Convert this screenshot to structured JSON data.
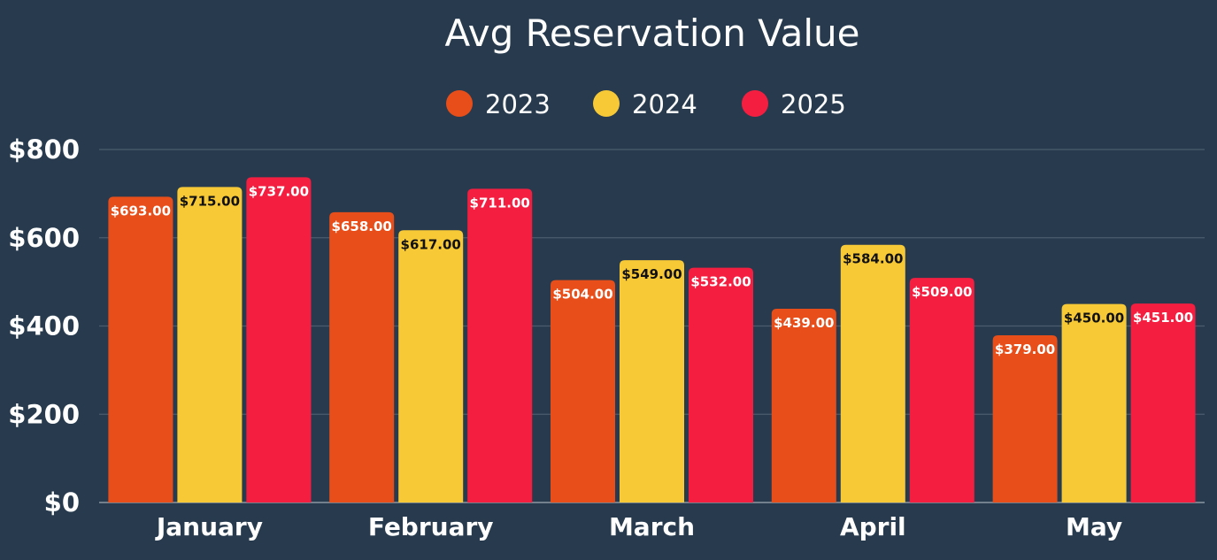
{
  "chart_data": {
    "type": "bar",
    "title": "Avg Reservation Value",
    "xlabel": "",
    "ylabel": "",
    "categories": [
      "January",
      "February",
      "March",
      "April",
      "May"
    ],
    "series": [
      {
        "name": "2023",
        "color": "#e84e19",
        "label_color": "#ffffff",
        "values": [
          693,
          658,
          504,
          439,
          379
        ],
        "labels": [
          "$693.00",
          "$658.00",
          "$504.00",
          "$439.00",
          "$379.00"
        ]
      },
      {
        "name": "2024",
        "color": "#f7c937",
        "label_color": "#111111",
        "values": [
          715,
          617,
          549,
          584,
          450
        ],
        "labels": [
          "$715.00",
          "$617.00",
          "$549.00",
          "$584.00",
          "$450.00"
        ]
      },
      {
        "name": "2025",
        "color": "#f41f40",
        "label_color": "#ffffff",
        "values": [
          737,
          711,
          532,
          509,
          451
        ],
        "labels": [
          "$737.00",
          "$711.00",
          "$532.00",
          "$509.00",
          "$451.00"
        ]
      }
    ],
    "ylim": [
      0,
      800
    ],
    "yticks": [
      0,
      200,
      400,
      600,
      800
    ],
    "ytick_labels": [
      "$0",
      "$200",
      "$400",
      "$600",
      "$800"
    ],
    "grid": true,
    "legend_position": "top-center",
    "background": "#283b4e"
  }
}
